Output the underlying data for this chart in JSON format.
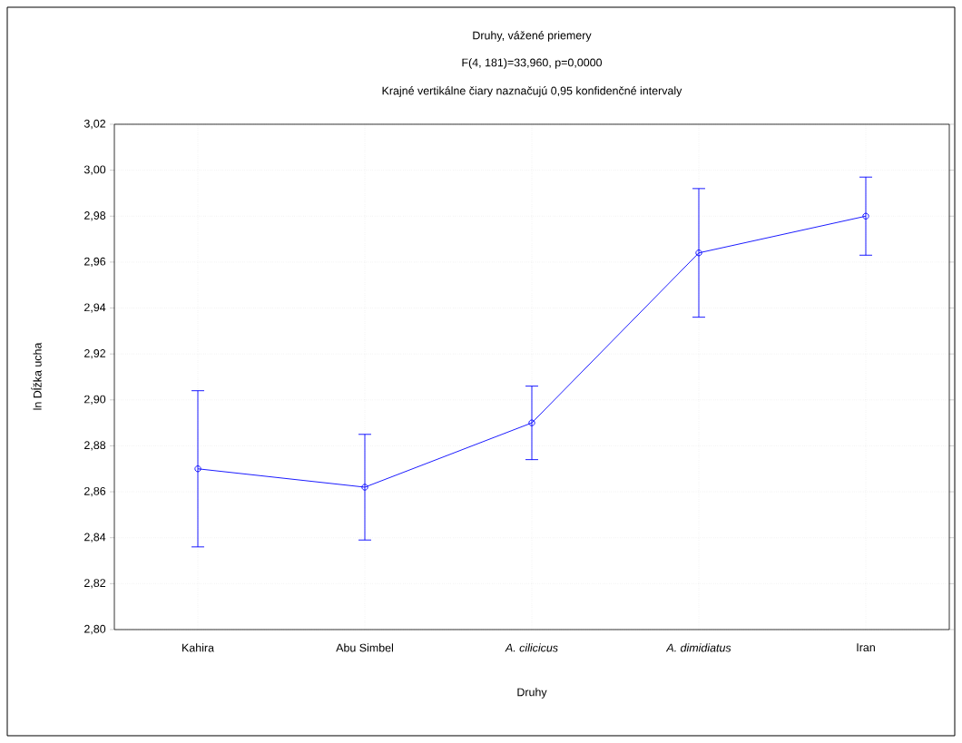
{
  "chart_data": {
    "type": "line",
    "title": "Druhy, vážené priemery",
    "subtitle": "F(4, 181)=33,960, p=0,0000",
    "annotations": [
      "Krajné vertikálne čiary naznačujú 0,95 konfidenčné intervaly"
    ],
    "xlabel": "Druhy",
    "ylabel": "ln Dĺžka ucha",
    "categories": [
      "Kahira",
      "Abu Simbel",
      "*A. cilicicus*",
      "*A. dimidiatus*",
      "Iran"
    ],
    "series": [
      {
        "color": "#0000ff",
        "values": [
          2.87,
          2.862,
          2.89,
          2.964,
          2.98
        ],
        "errors": [
          0.034,
          0.023,
          0.016,
          0.028,
          0.017
        ]
      }
    ],
    "ylim": [
      2.8,
      3.02
    ],
    "yticks": [
      {
        "value": 2.8,
        "label": "2,80"
      },
      {
        "value": 2.82,
        "label": "2,82"
      },
      {
        "value": 2.84,
        "label": "2,84"
      },
      {
        "value": 2.86,
        "label": "2,86"
      },
      {
        "value": 2.88,
        "label": "2,88"
      },
      {
        "value": 2.9,
        "label": "2,90"
      },
      {
        "value": 2.92,
        "label": "2,92"
      },
      {
        "value": 2.94,
        "label": "2,94"
      },
      {
        "value": 2.96,
        "label": "2,96"
      },
      {
        "value": 2.98,
        "label": "2,98"
      },
      {
        "value": 3.0,
        "label": "3,00"
      },
      {
        "value": 3.02,
        "label": "3,02"
      }
    ],
    "grid": true,
    "marker": "circle",
    "line_style": "solid"
  }
}
